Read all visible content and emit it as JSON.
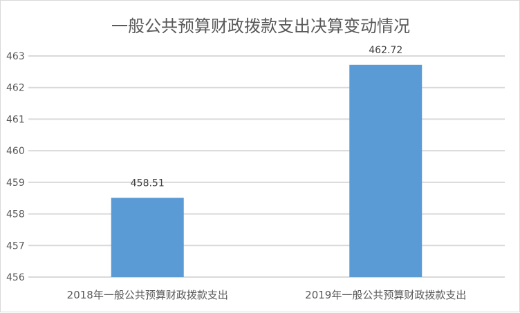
{
  "chart_data": {
    "type": "bar",
    "title": "一般公共预算财政拨款支出决算变动情况",
    "categories": [
      "2018年一般公共预算财政拨款支出",
      "2019年一般公共预算财政拨款支出"
    ],
    "values": [
      458.51,
      462.72
    ],
    "data_labels": [
      "458.51",
      "462.72"
    ],
    "ylim": [
      456,
      463
    ],
    "yticks": [
      "456",
      "457",
      "458",
      "459",
      "460",
      "461",
      "462",
      "463"
    ],
    "grid": true,
    "legend": "none",
    "colors": {
      "bar": "#5b9bd5",
      "grid": "#d9d9d9"
    }
  }
}
